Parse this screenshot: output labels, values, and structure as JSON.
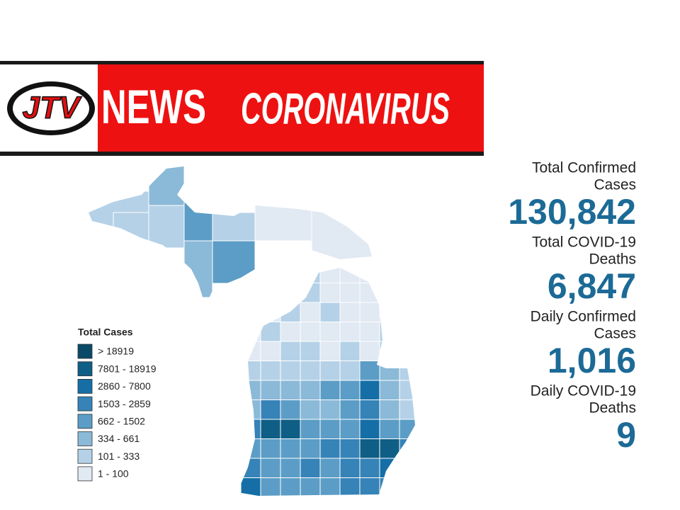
{
  "banner": {
    "logo": "JTV",
    "left": "NEWS",
    "right": "CORONAVIRUS"
  },
  "stats": [
    {
      "label_lines": [
        "Total Confirmed",
        "Cases"
      ],
      "value": "130,842"
    },
    {
      "label_lines": [
        "Total COVID-19",
        "Deaths"
      ],
      "value": "6,847"
    },
    {
      "label_lines": [
        "Daily Confirmed",
        "Cases"
      ],
      "value": "1,016"
    },
    {
      "label_lines": [
        "Daily COVID-19",
        "Deaths"
      ],
      "value": "9"
    }
  ],
  "legend": {
    "title": "Total Cases",
    "items": [
      {
        "label": "> 18919",
        "color": "#0a4a68"
      },
      {
        "label": "7801 - 18919",
        "color": "#0f5e85"
      },
      {
        "label": "2860 - 7800",
        "color": "#156fa6"
      },
      {
        "label": "1503 - 2859",
        "color": "#3583b7"
      },
      {
        "label": "662 - 1502",
        "color": "#5b9dc6"
      },
      {
        "label": "334 - 661",
        "color": "#8bb9d8"
      },
      {
        "label": "101 - 333",
        "color": "#b5d1e7"
      },
      {
        "label": "1 - 100",
        "color": "#e1e9f3"
      }
    ]
  }
}
